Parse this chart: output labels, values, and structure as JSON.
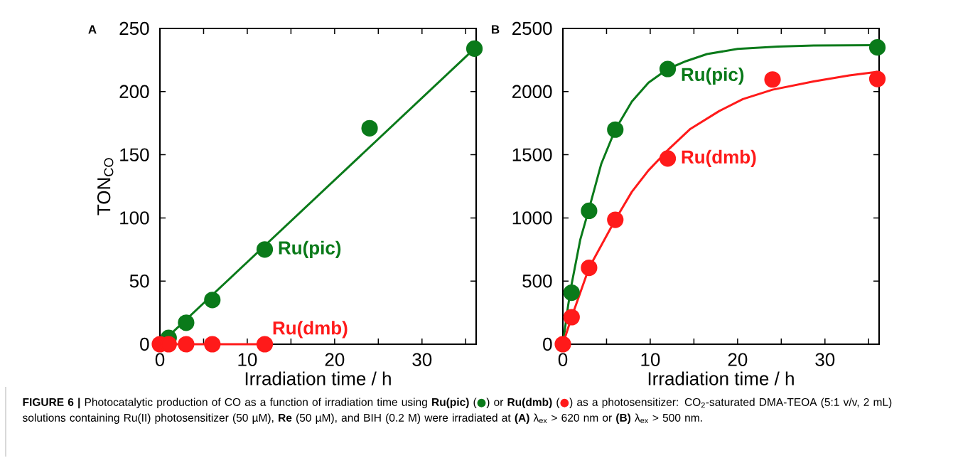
{
  "chart_data": [
    {
      "type": "scatter",
      "xlabel": "Irradiation time / h",
      "ylabel": "TON$_{CO}$",
      "xlim": [
        0,
        36.2
      ],
      "ylim": [
        0,
        250
      ],
      "xticks": [
        0,
        {
          "value": 5,
          "label": null
        },
        10,
        {
          "value": 15,
          "label": null
        },
        20,
        {
          "value": 25,
          "label": null
        },
        30,
        {
          "value": 35,
          "label": null
        }
      ],
      "yticks": [
        0,
        50,
        100,
        150,
        200,
        250
      ],
      "annotations": [
        "A",
        "**FIGURE 6 |** Photocatalytic production of CO as a function of irradiation time using **Ru(pic)** (",
        "●",
        ") or **Ru(dmb)** (",
        "●",
        ") as a photosensitizer: CO$_{2}$-saturated DMA-TEOA (5:1 v/v, 2 mL) solutions containing Ru(II) photosensitizer (50 µM), **Re** (50 µM), and BIH (0.2 M) were irradiated at **(A)** λ$_{ex}$ > 620 nm or **(B)** λ$_{ex}$ > 500 nm."
      ],
      "series": [
        {
          "name": "Ru(pic)",
          "marker": "circle",
          "color": "#0a7a1a",
          "x": [
            1,
            3,
            6,
            12,
            24,
            36
          ],
          "values": [
            5,
            17,
            35,
            75,
            171,
            234
          ]
        },
        {
          "name": "Ru(dmb)",
          "marker": "circle",
          "color": "#ff1a1a",
          "x": [
            0,
            1,
            3,
            6,
            12
          ],
          "values": [
            0,
            0,
            0,
            0,
            0
          ]
        },
        {
          "type": "line",
          "marker": "none",
          "color": "#0a7a1a",
          "x": [
            0,
            36
          ],
          "values": [
            0,
            234
          ]
        },
        {
          "type": "line",
          "marker": "none",
          "color": "#ff1a1a",
          "x": [
            0,
            12
          ],
          "values": [
            0,
            0
          ]
        }
      ]
    },
    {
      "type": "scatter",
      "xlabel": "Irradiation time / h",
      "legend": "top right",
      "xlim": [
        0,
        36.2
      ],
      "ylim": [
        0,
        2500
      ],
      "xticks": [
        0,
        {
          "value": 5,
          "label": null
        },
        10,
        {
          "value": 15,
          "label": null
        },
        20,
        {
          "value": 25,
          "label": null
        },
        30,
        {
          "value": 35,
          "label": null
        }
      ],
      "yticks": [
        0,
        500,
        1000,
        1500,
        2000,
        2500
      ],
      "annotations": [
        "B"
      ],
      "series": [
        {
          "name": "Ru(pic)",
          "marker": "circle",
          "color": "#0a7a1a",
          "x": [
            1,
            3,
            6,
            12,
            36
          ],
          "values": [
            408,
            1056,
            1699,
            2179,
            2350
          ]
        },
        {
          "name": "Ru(dmb)",
          "marker": "circle",
          "color": "#ff1a1a",
          "x": [
            0,
            1,
            3,
            6,
            12,
            24,
            36
          ],
          "values": [
            0,
            214,
            605,
            985,
            1470,
            2096,
            2100
          ]
        },
        {
          "type": "line",
          "marker": "none",
          "color": "#0a7a1a",
          "x": [
            0,
            0.6,
            1,
            2,
            3,
            4.4,
            6,
            7.9,
            9.8,
            12,
            14.1,
            16.5,
            20,
            24.6,
            28.7,
            36
          ],
          "values": [
            0,
            305,
            474,
            830,
            1073,
            1429,
            1699,
            1921,
            2071,
            2179,
            2241,
            2297,
            2338,
            2357,
            2365,
            2368
          ]
        },
        {
          "type": "line",
          "marker": "none",
          "color": "#ff1a1a",
          "x": [
            0,
            1,
            3,
            6,
            7.9,
            9.8,
            12,
            14.6,
            17.9,
            20.6,
            24,
            28.7,
            32.8,
            36
          ],
          "values": [
            0,
            214,
            605,
            985,
            1207,
            1376,
            1536,
            1705,
            1846,
            1940,
            2015,
            2080,
            2128,
            2156
          ]
        }
      ]
    }
  ]
}
